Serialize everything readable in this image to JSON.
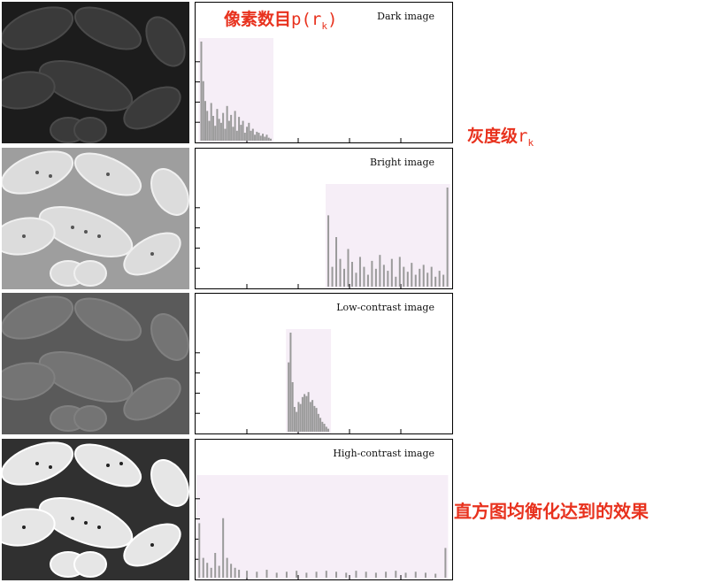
{
  "annotations": {
    "y_label_cn": "像素数目",
    "y_label_sym": "p(r",
    "y_label_sub": "k",
    "y_label_close": ")",
    "x_label_cn": "灰度级",
    "x_label_sym": "r",
    "x_label_sub": "k",
    "effect_label": "直方图均衡化达到的效果"
  },
  "colors": {
    "annotation": "#e8321e",
    "highlight": "#f6eef7",
    "bar": "#9a9a9a"
  },
  "chart_data": [
    {
      "type": "bar",
      "title": "Dark image",
      "xlim": [
        0,
        255
      ],
      "ylim": [
        0,
        100
      ],
      "x": [
        4,
        6,
        8,
        10,
        12,
        14,
        16,
        18,
        20,
        22,
        24,
        26,
        28,
        30,
        32,
        34,
        36,
        38,
        40,
        42,
        44,
        46,
        48,
        50,
        52,
        54,
        56,
        58,
        60,
        62,
        64,
        66,
        68,
        70,
        72,
        74
      ],
      "values": [
        100,
        60,
        40,
        30,
        20,
        38,
        25,
        15,
        32,
        22,
        18,
        28,
        12,
        35,
        20,
        26,
        14,
        30,
        10,
        24,
        16,
        20,
        8,
        14,
        18,
        10,
        12,
        6,
        9,
        8,
        5,
        7,
        4,
        6,
        3,
        2
      ]
    },
    {
      "type": "bar",
      "title": "Bright image",
      "xlim": [
        0,
        255
      ],
      "ylim": [
        0,
        100
      ],
      "x": [
        132,
        136,
        140,
        144,
        148,
        152,
        156,
        160,
        164,
        168,
        172,
        176,
        180,
        184,
        188,
        192,
        196,
        200,
        204,
        208,
        212,
        216,
        220,
        224,
        228,
        232,
        236,
        240,
        244,
        248,
        252
      ],
      "values": [
        72,
        20,
        50,
        28,
        18,
        38,
        25,
        14,
        30,
        20,
        12,
        26,
        18,
        32,
        22,
        16,
        28,
        10,
        30,
        20,
        15,
        24,
        12,
        18,
        22,
        14,
        20,
        10,
        16,
        12,
        100
      ]
    },
    {
      "type": "bar",
      "title": "Low-contrast image",
      "xlim": [
        0,
        255
      ],
      "ylim": [
        0,
        100
      ],
      "x": [
        92,
        94,
        96,
        98,
        100,
        102,
        104,
        106,
        108,
        110,
        112,
        114,
        116,
        118,
        120,
        122,
        124,
        126,
        128,
        130,
        132
      ],
      "values": [
        70,
        100,
        50,
        25,
        20,
        30,
        28,
        35,
        38,
        36,
        40,
        30,
        32,
        26,
        24,
        18,
        14,
        10,
        8,
        5,
        3
      ]
    },
    {
      "type": "bar",
      "title": "High-contrast image",
      "xlim": [
        0,
        255
      ],
      "ylim": [
        0,
        100
      ],
      "x": [
        2,
        6,
        10,
        14,
        18,
        22,
        26,
        30,
        34,
        38,
        42,
        50,
        60,
        70,
        80,
        90,
        100,
        110,
        120,
        130,
        140,
        150,
        160,
        170,
        180,
        190,
        200,
        210,
        220,
        230,
        240,
        250
      ],
      "values": [
        55,
        20,
        15,
        10,
        25,
        12,
        60,
        20,
        14,
        10,
        8,
        7,
        6,
        8,
        5,
        6,
        7,
        5,
        6,
        7,
        6,
        5,
        7,
        6,
        5,
        6,
        7,
        5,
        6,
        5,
        4,
        30
      ]
    }
  ]
}
